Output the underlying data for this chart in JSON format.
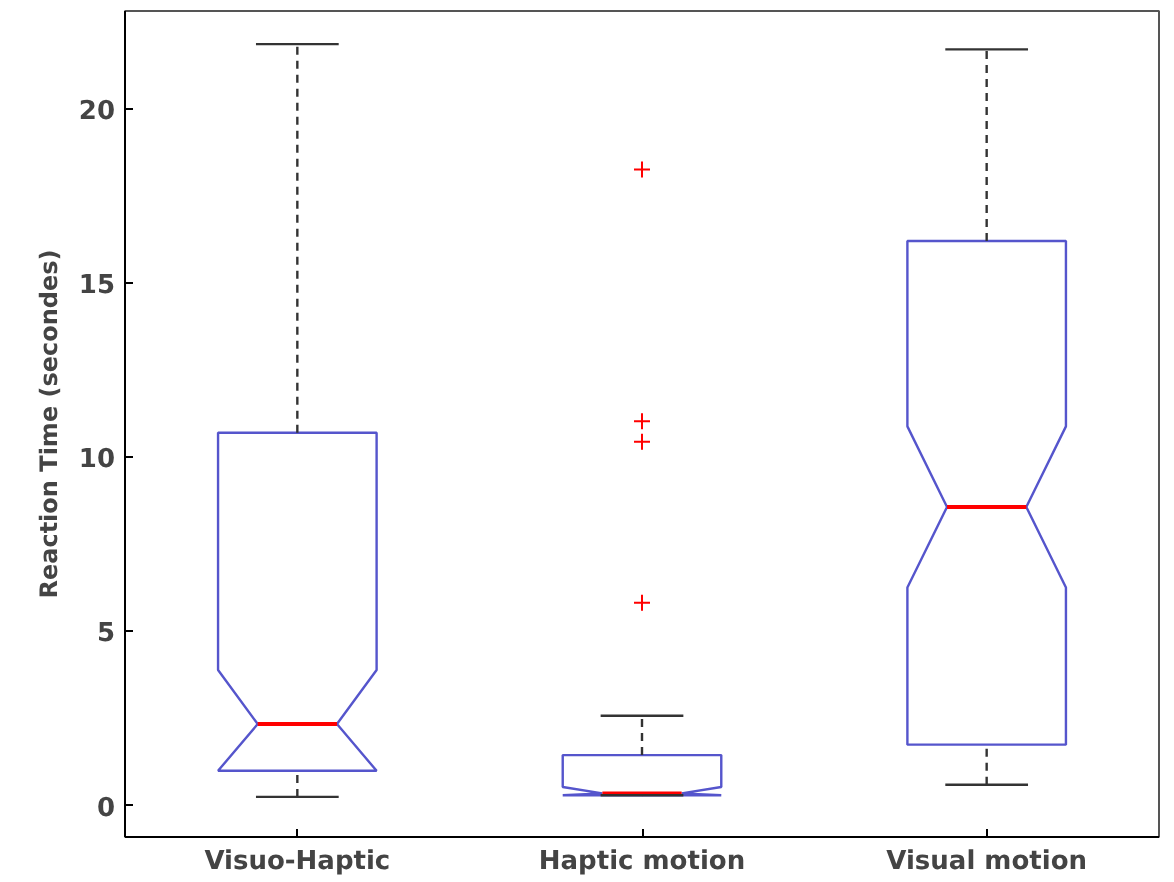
{
  "chart_data": {
    "type": "box",
    "ylabel": "Reaction Time (secondes)",
    "categories": [
      "Visuo-Haptic",
      "Haptic motion",
      "Visual motion"
    ],
    "boxes": [
      {
        "low": 0.25,
        "q1": 1.0,
        "median": 2.34,
        "q3": 10.7,
        "high": 21.85
      },
      {
        "low": 0.3,
        "q1": 0.3,
        "median": 0.35,
        "q3": 1.45,
        "high": 2.58,
        "outliers": [
          18.25,
          11.03,
          10.44,
          5.82
        ]
      },
      {
        "low": 0.6,
        "q1": 1.75,
        "median": 8.57,
        "q3": 16.2,
        "high": 21.7
      }
    ],
    "color": "#5555cc",
    "ylim": [
      -0.9,
      22.8
    ],
    "yticks": [
      0,
      5,
      10,
      15,
      20
    ],
    "grid": false
  }
}
